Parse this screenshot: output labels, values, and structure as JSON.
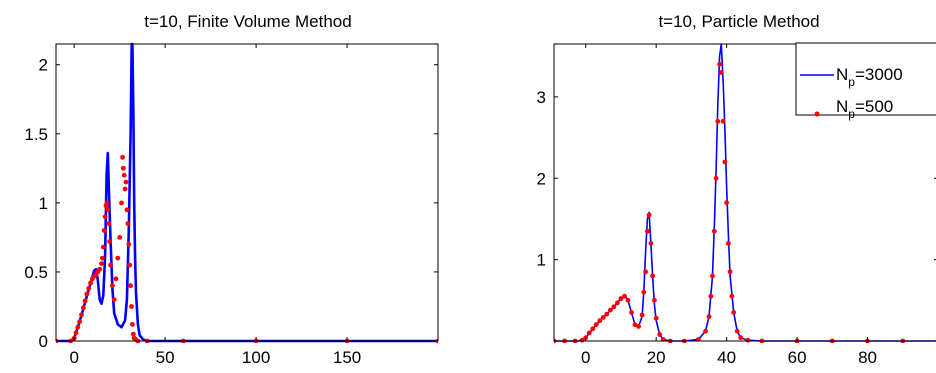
{
  "chart_data": [
    {
      "type": "line",
      "title": "t=10, Finite Volume Method",
      "xlabel": "",
      "ylabel": "",
      "xlim": [
        -10,
        200
      ],
      "ylim": [
        0,
        2.15
      ],
      "x_ticks": [
        0,
        50,
        100,
        150
      ],
      "y_ticks": [
        0,
        0.5,
        1,
        1.5,
        2
      ],
      "x_tick_labels": [
        "0",
        "50",
        "100",
        "150"
      ],
      "y_tick_labels": [
        "0",
        "0.5",
        "1",
        "1.5",
        "2"
      ],
      "grid": false,
      "series": [
        {
          "kind": "line",
          "color": "#0000ff",
          "x": [
            -10,
            -2,
            0,
            3,
            6,
            9,
            11,
            12,
            13,
            14,
            15,
            16,
            17,
            17.8,
            18.5,
            19.2,
            20,
            21,
            22,
            24,
            26,
            28,
            29,
            30,
            31,
            31.6,
            32,
            32.5,
            33,
            33.5,
            34,
            35,
            36,
            38,
            40,
            45,
            60,
            200
          ],
          "y": [
            0,
            0,
            0.02,
            0.14,
            0.28,
            0.42,
            0.51,
            0.52,
            0.44,
            0.3,
            0.27,
            0.33,
            0.62,
            1.2,
            1.36,
            1.05,
            0.72,
            0.38,
            0.2,
            0.12,
            0.1,
            0.15,
            0.3,
            0.8,
            1.5,
            2.15,
            2.15,
            1.7,
            1.0,
            0.6,
            0.35,
            0.12,
            0.04,
            0.01,
            0,
            0,
            0,
            0
          ]
        },
        {
          "kind": "scatter",
          "color": "#ff0000",
          "x": [
            -10,
            -2,
            0,
            1,
            2,
            3,
            4,
            5,
            6,
            7,
            8,
            9,
            10,
            11,
            12,
            13,
            14,
            15,
            15.5,
            16,
            16.5,
            17,
            17.5,
            18,
            18.5,
            19,
            19.5,
            20,
            21,
            22,
            23,
            24,
            25,
            26,
            26.6,
            27,
            27.5,
            28,
            28.5,
            29,
            29.5,
            30,
            30.5,
            31,
            31.5,
            32,
            32.5,
            33,
            34,
            35,
            40,
            60,
            100,
            150,
            200
          ],
          "y": [
            0,
            0,
            0.02,
            0.06,
            0.1,
            0.14,
            0.19,
            0.24,
            0.29,
            0.34,
            0.38,
            0.42,
            0.45,
            0.47,
            0.48,
            0.5,
            0.52,
            0.56,
            0.6,
            0.68,
            0.8,
            0.9,
            0.98,
            1.0,
            0.95,
            0.85,
            0.72,
            0.55,
            0.4,
            0.3,
            0.45,
            0.6,
            0.75,
            1.0,
            1.33,
            1.25,
            1.2,
            1.1,
            1.15,
            0.95,
            0.85,
            0.7,
            0.55,
            0.4,
            0.25,
            0.12,
            0.05,
            0.02,
            0.01,
            0,
            0,
            0,
            0,
            0,
            0
          ]
        }
      ]
    },
    {
      "type": "line",
      "title": "t=10, Particle Method",
      "xlabel": "",
      "ylabel": "",
      "xlim": [
        -9,
        100
      ],
      "ylim": [
        0,
        3.65
      ],
      "x_ticks": [
        0,
        20,
        40,
        60,
        80
      ],
      "y_ticks": [
        1,
        2,
        3
      ],
      "x_tick_labels": [
        "0",
        "20",
        "40",
        "60",
        "80"
      ],
      "y_tick_labels": [
        "1",
        "2",
        "3"
      ],
      "grid": false,
      "legend": {
        "placement": "top-right",
        "entries": [
          {
            "main": "N",
            "sub": "p",
            "rest": "=3000",
            "kind": "line",
            "color": "#0000ff"
          },
          {
            "main": "N",
            "sub": "p",
            "rest": "=500",
            "kind": "scatter",
            "color": "#ff0000"
          }
        ]
      },
      "series": [
        {
          "kind": "line",
          "color": "#0000ff",
          "x": [
            -9,
            -2,
            0,
            2,
            4,
            6,
            8,
            10,
            11,
            12,
            13,
            14,
            15,
            16,
            16.5,
            17,
            17.5,
            18,
            18.5,
            19,
            19.5,
            20,
            21,
            22,
            24,
            28,
            32,
            34,
            35,
            36,
            36.5,
            37,
            37.5,
            38,
            38.5,
            39,
            39.5,
            40,
            40.5,
            41,
            42,
            43,
            44,
            46,
            50,
            60,
            80,
            100
          ],
          "y": [
            0,
            0,
            0.04,
            0.15,
            0.25,
            0.33,
            0.42,
            0.52,
            0.56,
            0.5,
            0.35,
            0.2,
            0.18,
            0.3,
            0.6,
            1.1,
            1.5,
            1.58,
            1.2,
            0.8,
            0.45,
            0.25,
            0.08,
            0.02,
            0,
            0,
            0.02,
            0.12,
            0.3,
            0.8,
            1.4,
            2.1,
            2.9,
            3.5,
            3.65,
            3.2,
            2.6,
            1.9,
            1.3,
            0.8,
            0.35,
            0.12,
            0.04,
            0.01,
            0,
            0,
            0,
            0
          ]
        },
        {
          "kind": "scatter",
          "color": "#ff0000",
          "x": [
            -9,
            -6,
            -3,
            -1,
            0,
            1,
            2,
            3,
            4,
            5,
            6,
            7,
            8,
            9,
            10,
            11,
            12,
            13,
            14,
            15,
            16,
            16.5,
            17,
            17.5,
            18,
            18.5,
            19,
            19.5,
            20,
            21,
            22,
            24,
            28,
            32,
            34,
            35,
            35.5,
            36,
            36.5,
            37,
            37.5,
            38,
            38.5,
            39,
            39.5,
            40,
            40.5,
            41,
            41.5,
            42,
            43,
            44,
            46,
            50,
            60,
            70,
            80,
            90,
            100
          ],
          "y": [
            0,
            0,
            0,
            0.01,
            0.04,
            0.1,
            0.15,
            0.2,
            0.25,
            0.29,
            0.33,
            0.38,
            0.42,
            0.47,
            0.52,
            0.55,
            0.5,
            0.35,
            0.2,
            0.18,
            0.32,
            0.6,
            0.85,
            1.35,
            1.55,
            1.2,
            0.8,
            0.5,
            0.28,
            0.08,
            0.02,
            0,
            0,
            0.02,
            0.12,
            0.3,
            0.55,
            0.8,
            1.35,
            2.0,
            2.7,
            3.4,
            3.3,
            2.7,
            2.2,
            1.7,
            1.2,
            0.85,
            0.55,
            0.35,
            0.12,
            0.04,
            0.01,
            0,
            0,
            0,
            0,
            0,
            0
          ]
        }
      ]
    }
  ]
}
